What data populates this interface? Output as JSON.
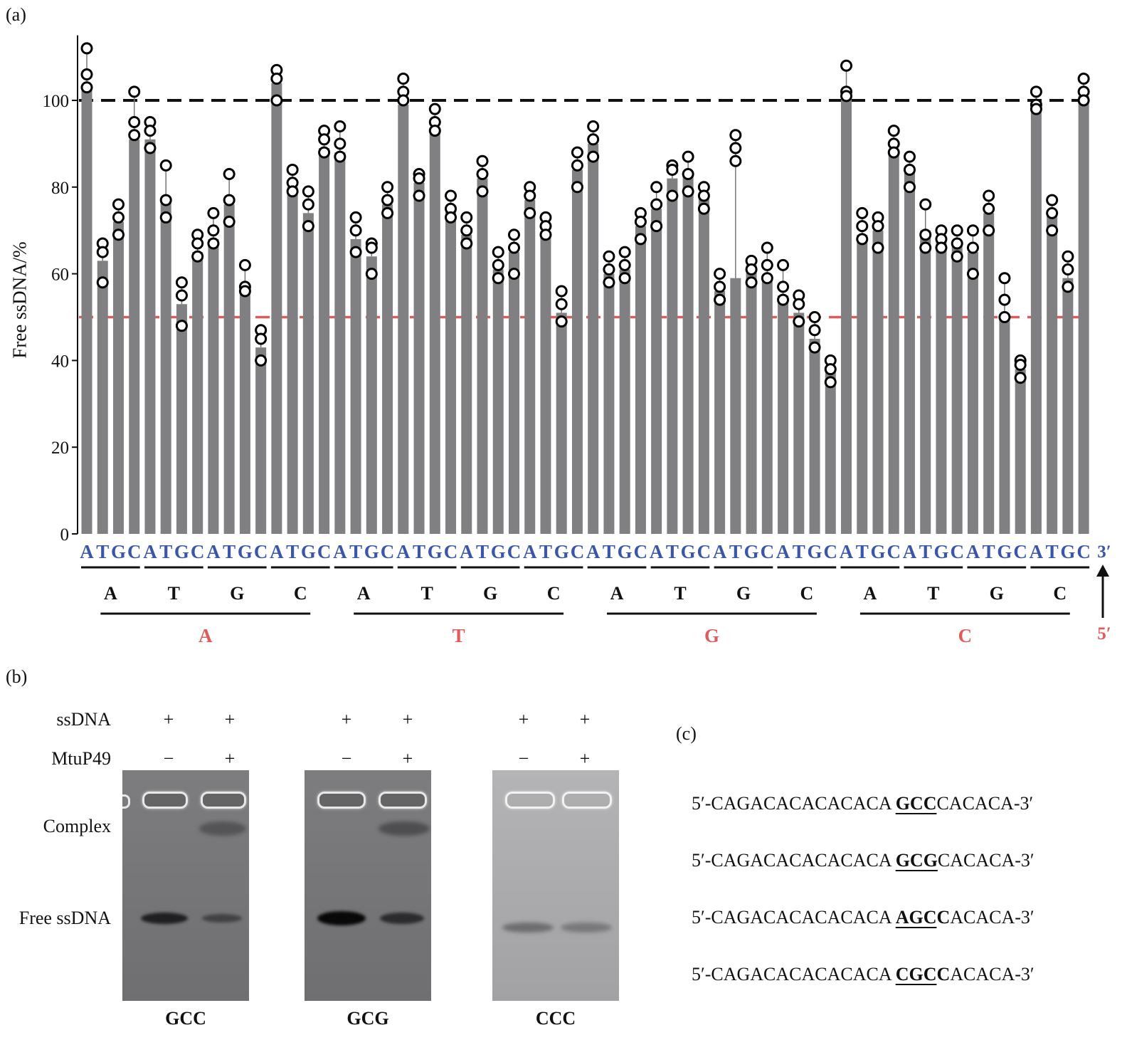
{
  "panels": {
    "a": "(a)",
    "b": "(b)",
    "c": "(c)"
  },
  "chart_data": {
    "type": "bar",
    "ylabel": "Free ssDNA/%",
    "ylim": [
      0,
      115
    ],
    "yticks": [
      0,
      20,
      40,
      60,
      80,
      100
    ],
    "reference_lines": [
      {
        "value": 100,
        "style": "dashed",
        "color": "#111111"
      },
      {
        "value": 50,
        "style": "dashed",
        "color": "#e05a5a"
      }
    ],
    "third_position_labels": [
      "A",
      "T",
      "G",
      "C",
      "A",
      "T",
      "G",
      "C",
      "A",
      "T",
      "G",
      "C",
      "A",
      "T",
      "G",
      "C",
      "A",
      "T",
      "G",
      "C",
      "A",
      "T",
      "G",
      "C",
      "A",
      "T",
      "G",
      "C",
      "A",
      "T",
      "G",
      "C",
      "A",
      "T",
      "G",
      "C",
      "A",
      "T",
      "G",
      "C",
      "A",
      "T",
      "G",
      "C",
      "A",
      "T",
      "G",
      "C",
      "A",
      "T",
      "G",
      "C",
      "A",
      "T",
      "G",
      "C",
      "A",
      "T",
      "G",
      "C",
      "A",
      "T",
      "G",
      "C"
    ],
    "second_position_labels": [
      "A",
      "T",
      "G",
      "C",
      "A",
      "T",
      "G",
      "C",
      "A",
      "T",
      "G",
      "C",
      "A",
      "T",
      "G",
      "C"
    ],
    "first_position_labels": [
      "A",
      "T",
      "G",
      "C"
    ],
    "end_labels": {
      "top": "3′",
      "bottom": "5′"
    },
    "values": [
      103,
      63,
      72,
      91,
      91,
      77,
      53,
      65,
      68,
      76,
      56,
      43,
      104,
      80,
      74,
      89,
      88,
      68,
      64,
      76,
      99,
      81,
      93,
      75,
      69,
      82,
      61,
      65,
      77,
      69,
      51,
      84,
      90,
      60,
      61,
      71,
      75,
      82,
      83,
      78,
      56,
      59,
      62,
      59,
      55,
      51,
      45,
      38,
      101,
      69,
      70,
      88,
      84,
      70,
      68,
      67,
      65,
      74,
      50,
      38,
      99,
      74,
      59,
      101
    ],
    "points": [
      [
        112,
        106,
        103
      ],
      [
        67,
        65,
        58
      ],
      [
        76,
        73,
        69
      ],
      [
        102,
        95,
        92
      ],
      [
        95,
        93,
        89
      ],
      [
        85,
        77,
        73
      ],
      [
        58,
        55,
        48
      ],
      [
        69,
        67,
        64
      ],
      [
        74,
        70,
        67
      ],
      [
        83,
        77,
        72
      ],
      [
        62,
        57,
        56
      ],
      [
        47,
        45,
        40
      ],
      [
        107,
        105,
        100
      ],
      [
        84,
        81,
        79
      ],
      [
        79,
        76,
        71
      ],
      [
        93,
        91,
        88
      ],
      [
        94,
        90,
        87
      ],
      [
        73,
        70,
        65
      ],
      [
        67,
        66,
        60
      ],
      [
        80,
        77,
        74
      ],
      [
        105,
        102,
        100
      ],
      [
        83,
        82,
        78
      ],
      [
        98,
        95,
        93
      ],
      [
        78,
        75,
        73
      ],
      [
        73,
        70,
        67
      ],
      [
        86,
        83,
        79
      ],
      [
        65,
        62,
        59
      ],
      [
        69,
        66,
        60
      ],
      [
        80,
        78,
        74
      ],
      [
        73,
        71,
        69
      ],
      [
        56,
        53,
        49
      ],
      [
        88,
        85,
        80
      ],
      [
        94,
        91,
        87
      ],
      [
        64,
        61,
        58
      ],
      [
        65,
        62,
        59
      ],
      [
        74,
        72,
        68
      ],
      [
        80,
        76,
        71
      ],
      [
        85,
        84,
        78
      ],
      [
        87,
        83,
        79
      ],
      [
        80,
        78,
        75
      ],
      [
        60,
        57,
        54
      ],
      [
        92,
        89,
        86
      ],
      [
        63,
        61,
        58
      ],
      [
        66,
        62,
        59
      ],
      [
        62,
        57,
        54
      ],
      [
        55,
        53,
        49
      ],
      [
        50,
        47,
        43
      ],
      [
        40,
        38,
        35
      ],
      [
        108,
        102,
        101
      ],
      [
        74,
        71,
        68
      ],
      [
        73,
        71,
        66
      ],
      [
        93,
        90,
        88
      ],
      [
        87,
        84,
        80
      ],
      [
        76,
        69,
        66
      ],
      [
        70,
        68,
        66
      ],
      [
        70,
        67,
        64
      ],
      [
        70,
        66,
        60
      ],
      [
        78,
        75,
        70
      ],
      [
        59,
        54,
        50
      ],
      [
        40,
        39,
        36
      ],
      [
        102,
        99,
        98
      ],
      [
        77,
        74,
        70
      ],
      [
        64,
        61,
        57
      ],
      [
        105,
        102,
        100
      ]
    ]
  },
  "gel": {
    "row_labels": {
      "ssdna": "ssDNA",
      "mtup49": "MtuP49"
    },
    "side_labels": {
      "complex": "Complex",
      "free": "Free ssDNA"
    },
    "lanes": [
      {
        "ssdna": "+",
        "mtup49": "−"
      },
      {
        "ssdna": "+",
        "mtup49": "+"
      }
    ],
    "names": [
      "GCC",
      "GCG",
      "CCC"
    ]
  },
  "sequences": [
    {
      "prefix": "5′-CAGACACACACACA ",
      "pre_bold": "",
      "core": "GCC",
      "post_bold": "",
      "suffix": "CACACA-3′"
    },
    {
      "prefix": "5′-CAGACACACACACA ",
      "pre_bold": "",
      "core": "GCG",
      "post_bold": "",
      "suffix": "CACACA-3′"
    },
    {
      "prefix": "5′-CAGACACACACACA ",
      "pre_bold": "A",
      "core": "GC",
      "post_bold": "C",
      "suffix": "ACACA-3′"
    },
    {
      "prefix": "5′-CAGACACACACACA ",
      "pre_bold": "C",
      "core": "GC",
      "post_bold": "C",
      "suffix": "ACACA-3′"
    }
  ],
  "colors": {
    "bar": "#808082",
    "blue": "#3a56a8",
    "red": "#e05a5a"
  }
}
